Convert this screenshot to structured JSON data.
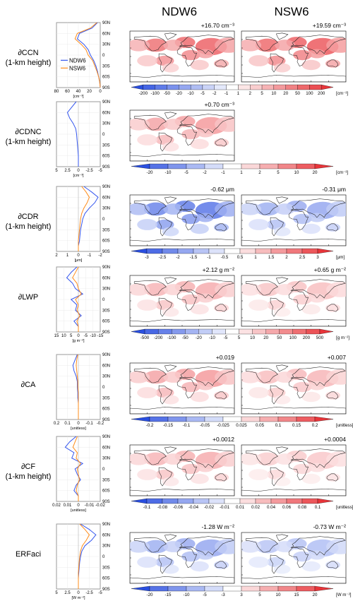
{
  "headers": [
    "NDW6",
    "NSW6"
  ],
  "colors": {
    "ndw6": "#3355ee",
    "nsw6": "#ff8c1a",
    "pos_strong": "#e8353a",
    "neg_strong": "#2a4fe0"
  },
  "legend": [
    "NDW6",
    "NSW6"
  ],
  "lat_ticks": [
    "90N",
    "60N",
    "30N",
    "0",
    "30S",
    "60S",
    "90S"
  ],
  "chart_data": [
    {
      "type": "line",
      "row_label": [
        "∂CCN",
        "(1-km height)"
      ],
      "x_ticks": [
        "80",
        "60",
        "40",
        "20",
        "0"
      ],
      "x_unit": "[cm⁻³]",
      "xlim": [
        80,
        0
      ],
      "stat_ndw6": "+16.70 cm⁻³",
      "stat_nsw6": "+19.59 cm⁻³",
      "cbar_labels": [
        "-200",
        "-100",
        "-50",
        "-20",
        "-10",
        "-5",
        "-2",
        "-1",
        "1",
        "2",
        "5",
        "10",
        "20",
        "50",
        "100",
        "200"
      ],
      "cbar_unit": "[cm⁻³]",
      "maps": [
        "ndw6",
        "nsw6"
      ],
      "intensity": [
        0.85,
        0.9
      ],
      "neg": [
        0.0,
        0.0
      ],
      "series": [
        {
          "name": "NDW6",
          "lat": [
            90,
            75,
            60,
            45,
            30,
            15,
            0,
            -15,
            -30,
            -45,
            -60,
            -75,
            -90
          ],
          "values": [
            5,
            15,
            38,
            42,
            30,
            22,
            18,
            12,
            8,
            5,
            3,
            1,
            0
          ]
        },
        {
          "name": "NSW6",
          "lat": [
            90,
            75,
            60,
            45,
            30,
            15,
            0,
            -15,
            -30,
            -45,
            -60,
            -75,
            -90
          ],
          "values": [
            6,
            18,
            42,
            46,
            35,
            26,
            22,
            14,
            10,
            6,
            3,
            1,
            0
          ]
        }
      ]
    },
    {
      "type": "line",
      "row_label": [
        "∂CDNC",
        "(1-km height)"
      ],
      "x_ticks": [
        "5",
        "2.5",
        "0",
        "-2.5",
        "-5"
      ],
      "x_unit": "[cm⁻³]",
      "xlim": [
        5,
        -5
      ],
      "stat_ndw6": "+0.70 cm⁻³",
      "stat_nsw6": "",
      "cbar_labels": [
        "-20",
        "-10",
        "-5",
        "-2",
        "-1",
        "1",
        "2",
        "5",
        "10",
        "20"
      ],
      "cbar_unit": "[cm⁻³]",
      "maps": [
        "ndw6"
      ],
      "intensity": [
        0.55
      ],
      "neg": [
        0.05
      ],
      "series": [
        {
          "name": "NDW6",
          "lat": [
            90,
            75,
            60,
            45,
            30,
            15,
            0,
            -15,
            -30,
            -45,
            -60,
            -75,
            -90
          ],
          "values": [
            0.5,
            1.5,
            2.5,
            2.0,
            1.2,
            0.6,
            0.4,
            0.3,
            0.2,
            0.1,
            0.0,
            0.0,
            0.0
          ]
        }
      ]
    },
    {
      "type": "line",
      "row_label": [
        "∂CDR",
        "(1-km height)"
      ],
      "x_ticks": [
        "2",
        "1",
        "0",
        "-1",
        "-2"
      ],
      "x_unit": "[μm]",
      "xlim": [
        2,
        -2
      ],
      "stat_ndw6": "-0.62 μm",
      "stat_nsw6": "-0.31 μm",
      "cbar_labels": [
        "-3",
        "-2.5",
        "-2",
        "-1.5",
        "-1",
        "-0.5",
        "0.5",
        "1",
        "1.5",
        "2",
        "2.5",
        "3"
      ],
      "cbar_unit": "[μm]",
      "maps": [
        "ndw6",
        "nsw6"
      ],
      "intensity": [
        0.0,
        0.0
      ],
      "neg": [
        0.85,
        0.55
      ],
      "series": [
        {
          "name": "NDW6",
          "lat": [
            90,
            75,
            60,
            45,
            30,
            15,
            0,
            -15,
            -30,
            -45,
            -60,
            -75,
            -90
          ],
          "values": [
            -0.5,
            -1.2,
            -1.8,
            -1.5,
            -1.0,
            -0.6,
            -0.4,
            -0.3,
            -0.2,
            -0.15,
            -0.1,
            0.0,
            0.0
          ]
        },
        {
          "name": "NSW6",
          "lat": [
            90,
            75,
            60,
            45,
            30,
            15,
            0,
            -15,
            -30,
            -45,
            -60,
            -75,
            -90
          ],
          "values": [
            -0.3,
            -0.7,
            -1.0,
            -0.8,
            -0.5,
            -0.3,
            -0.2,
            -0.15,
            -0.1,
            -0.05,
            0.0,
            0.0,
            0.0
          ]
        }
      ]
    },
    {
      "type": "line",
      "row_label": [
        "∂LWP",
        ""
      ],
      "x_ticks": [
        "15",
        "10",
        "5",
        "0",
        "-5",
        "-10",
        "-15"
      ],
      "x_unit": "[g m⁻²]",
      "xlim": [
        15,
        -15
      ],
      "stat_ndw6": "+2.12 g m⁻²",
      "stat_nsw6": "+0.65 g m⁻²",
      "cbar_labels": [
        "-500",
        "-200",
        "-100",
        "-50",
        "-20",
        "-10",
        "-5",
        "5",
        "10",
        "20",
        "50",
        "100",
        "200",
        "500"
      ],
      "cbar_unit": "[g m⁻²]",
      "maps": [
        "ndw6",
        "nsw6"
      ],
      "intensity": [
        0.45,
        0.35
      ],
      "neg": [
        0.3,
        0.25
      ],
      "series": [
        {
          "name": "NDW6",
          "lat": [
            90,
            75,
            60,
            45,
            30,
            15,
            0,
            -15,
            -30,
            -45,
            -60,
            -75,
            -90
          ],
          "values": [
            1,
            5,
            8,
            4,
            2,
            -3,
            5,
            1,
            2,
            -2,
            3,
            0,
            0
          ]
        },
        {
          "name": "NSW6",
          "lat": [
            90,
            75,
            60,
            45,
            30,
            15,
            0,
            -15,
            -30,
            -45,
            -60,
            -75,
            -90
          ],
          "values": [
            0,
            2,
            4,
            1,
            0,
            -2,
            2,
            0,
            1,
            -1,
            1,
            0,
            0
          ]
        }
      ]
    },
    {
      "type": "line",
      "row_label": [
        "∂CA",
        ""
      ],
      "x_ticks": [
        "0.2",
        "0.1",
        "0",
        "-0.1",
        "-0.2"
      ],
      "x_unit": "[unitless]",
      "xlim": [
        0.2,
        -0.2
      ],
      "stat_ndw6": "+0.019",
      "stat_nsw6": "+0.007",
      "cbar_labels": [
        "-0.2",
        "-0.15",
        "-0.1",
        "-0.05",
        "-0.025",
        "0.025",
        "0.05",
        "0.1",
        "0.15",
        "0.2"
      ],
      "cbar_unit": "[unitless]",
      "maps": [
        "ndw6",
        "nsw6"
      ],
      "intensity": [
        0.55,
        0.4
      ],
      "neg": [
        0.1,
        0.08
      ],
      "series": [
        {
          "name": "NDW6",
          "lat": [
            90,
            75,
            60,
            45,
            30,
            15,
            0,
            -15,
            -30,
            -45,
            -60,
            -75,
            -90
          ],
          "values": [
            0.01,
            0.03,
            0.05,
            0.04,
            0.02,
            0.01,
            0.01,
            0.005,
            0.005,
            0.0,
            0.0,
            0.0,
            0.0
          ]
        },
        {
          "name": "NSW6",
          "lat": [
            90,
            75,
            60,
            45,
            30,
            15,
            0,
            -15,
            -30,
            -45,
            -60,
            -75,
            -90
          ],
          "values": [
            0.005,
            0.015,
            0.02,
            0.015,
            0.01,
            0.005,
            0.005,
            0.0,
            0.0,
            0.0,
            0.0,
            0.0,
            0.0
          ]
        }
      ]
    },
    {
      "type": "line",
      "row_label": [
        "∂CF",
        "(1-km height)"
      ],
      "x_ticks": [
        "0.02",
        "0.01",
        "0",
        "-0.01",
        "-0.02"
      ],
      "x_unit": "[unitless]",
      "xlim": [
        0.02,
        -0.02
      ],
      "stat_ndw6": "+0.0012",
      "stat_nsw6": "+0.0004",
      "cbar_labels": [
        "-0.1",
        "-0.08",
        "-0.06",
        "-0.04",
        "-0.02",
        "-0.01",
        "0.01",
        "0.02",
        "0.04",
        "0.06",
        "0.08",
        "0.1"
      ],
      "cbar_unit": "[unitless]",
      "maps": [
        "ndw6",
        "nsw6"
      ],
      "intensity": [
        0.45,
        0.3
      ],
      "neg": [
        0.2,
        0.2
      ],
      "series": [
        {
          "name": "NDW6",
          "lat": [
            90,
            75,
            60,
            45,
            30,
            15,
            0,
            -15,
            -30,
            -45,
            -60,
            -75,
            -90
          ],
          "values": [
            0.002,
            0.008,
            0.012,
            0.004,
            0.006,
            -0.004,
            0.003,
            0.001,
            -0.002,
            0.002,
            0.004,
            0.0,
            0.0
          ]
        },
        {
          "name": "NSW6",
          "lat": [
            90,
            75,
            60,
            45,
            30,
            15,
            0,
            -15,
            -30,
            -45,
            -60,
            -75,
            -90
          ],
          "values": [
            0.001,
            0.003,
            0.005,
            0.001,
            0.002,
            -0.002,
            0.001,
            0.0,
            -0.001,
            0.001,
            0.002,
            0.0,
            0.0
          ]
        }
      ]
    },
    {
      "type": "line",
      "row_label": [
        "ERFaci",
        ""
      ],
      "x_ticks": [
        "5",
        "2.5",
        "0",
        "-2.5",
        "-5"
      ],
      "x_unit": "[W m⁻²]",
      "xlim": [
        5,
        -5
      ],
      "stat_ndw6": "-1.28 W m⁻²",
      "stat_nsw6": "-0.73 W m⁻²",
      "cbar_labels": [
        "-20",
        "-15",
        "-10",
        "-5",
        "-3",
        "3",
        "5",
        "10",
        "15",
        "20"
      ],
      "cbar_unit": "[W m⁻²]",
      "maps": [
        "ndw6",
        "nsw6"
      ],
      "intensity": [
        0.1,
        0.08
      ],
      "neg": [
        0.55,
        0.4
      ],
      "series": [
        {
          "name": "NDW6",
          "lat": [
            90,
            75,
            60,
            45,
            30,
            15,
            0,
            -15,
            -30,
            -45,
            -60,
            -75,
            -90
          ],
          "values": [
            -0.5,
            -2.5,
            -4.0,
            -3.0,
            -1.5,
            -0.8,
            -0.5,
            -0.3,
            -0.2,
            -0.1,
            0.0,
            0.0,
            0.0
          ]
        },
        {
          "name": "NSW6",
          "lat": [
            90,
            75,
            60,
            45,
            30,
            15,
            0,
            -15,
            -30,
            -45,
            -60,
            -75,
            -90
          ],
          "values": [
            -0.3,
            -1.5,
            -2.5,
            -1.8,
            -0.9,
            -0.5,
            -0.3,
            -0.2,
            -0.1,
            0.0,
            0.0,
            0.0,
            0.0
          ]
        }
      ]
    }
  ]
}
